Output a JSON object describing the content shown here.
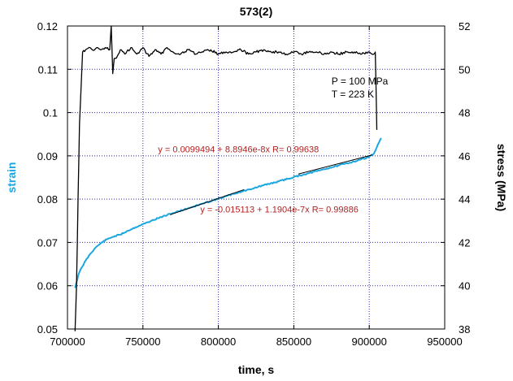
{
  "chart_data": {
    "type": "line",
    "title": "573(2)",
    "xlabel": "time, s",
    "ylabel_left": "strain",
    "ylabel_right": "stress (MPa)",
    "xlim": [
      700000,
      950000
    ],
    "ylim_left": [
      0.05,
      0.12
    ],
    "ylim_right": [
      38,
      52
    ],
    "xticks": [
      "700000",
      "750000",
      "800000",
      "850000",
      "900000",
      "950000"
    ],
    "yticks_left": [
      "0.05",
      "0.06",
      "0.07",
      "0.08",
      "0.09",
      "0.1",
      "0.11",
      "0.12"
    ],
    "yticks_right": [
      "38",
      "40",
      "42",
      "44",
      "46",
      "48",
      "50",
      "52"
    ],
    "grid": true,
    "series": [
      {
        "name": "strain",
        "axis": "left",
        "color": "#1aa7e0",
        "x": [
          705000,
          706000,
          707000,
          708000,
          710000,
          712000,
          715000,
          718000,
          722000,
          726000,
          730000,
          735000,
          740000,
          745000,
          750000,
          755000,
          760000,
          770000,
          780000,
          790000,
          800000,
          810000,
          820000,
          830000,
          840000,
          850000,
          860000,
          870000,
          880000,
          890000,
          900000,
          903000,
          905000,
          907000,
          908000
        ],
        "y": [
          0.0595,
          0.0608,
          0.0622,
          0.0632,
          0.0645,
          0.0658,
          0.0673,
          0.0686,
          0.0698,
          0.0707,
          0.0713,
          0.0718,
          0.0727,
          0.0735,
          0.0742,
          0.0749,
          0.0756,
          0.0768,
          0.0779,
          0.079,
          0.0801,
          0.0812,
          0.0822,
          0.0832,
          0.0841,
          0.0851,
          0.086,
          0.0869,
          0.0878,
          0.0887,
          0.0898,
          0.0905,
          0.092,
          0.0935,
          0.0941
        ]
      },
      {
        "name": "stress",
        "axis": "right",
        "color": "#000000",
        "x": [
          705000,
          706000,
          707000,
          708000,
          710000,
          712000,
          715000,
          718000,
          720000,
          722000,
          725000,
          728000,
          729000,
          730000,
          731000,
          733000,
          735000,
          738000,
          742000,
          746000,
          750000,
          754000,
          758000,
          762000,
          766000,
          770000,
          775000,
          780000,
          785000,
          790000,
          795000,
          800000,
          805000,
          810000,
          815000,
          820000,
          825000,
          830000,
          835000,
          840000,
          845000,
          850000,
          855000,
          860000,
          865000,
          870000,
          875000,
          880000,
          885000,
          890000,
          895000,
          900000,
          903000,
          904000,
          905000
        ],
        "y": [
          37.9,
          40.0,
          44.0,
          47.5,
          50.8,
          50.9,
          51.0,
          50.9,
          51.0,
          50.9,
          51.0,
          50.9,
          52.0,
          49.8,
          50.5,
          50.6,
          50.9,
          50.7,
          51.0,
          50.7,
          51.0,
          50.6,
          50.9,
          50.7,
          51.0,
          50.8,
          50.7,
          50.9,
          50.7,
          50.8,
          50.9,
          50.7,
          50.8,
          50.8,
          50.9,
          50.7,
          50.8,
          50.9,
          50.8,
          50.8,
          50.7,
          50.8,
          50.7,
          50.8,
          50.8,
          50.7,
          50.8,
          50.7,
          50.8,
          50.8,
          50.7,
          50.8,
          50.7,
          50.8,
          47.2
        ]
      }
    ],
    "fit_lines": [
      {
        "label": "y = 0.0099494 + 8.8946e-8x   R= 0.99638",
        "x": [
          853000,
          902000
        ],
        "y": [
          0.0858,
          0.0902
        ],
        "label_x": 760000,
        "label_y": 0.0908
      },
      {
        "label": "y = -0.015113 + 1.1904e-7x   R= 0.99886",
        "x": [
          768000,
          817000
        ],
        "y": [
          0.0764,
          0.0822
        ],
        "label_x": 788000,
        "label_y": 0.0769
      }
    ],
    "annotations": [
      {
        "text": "P = 100 MPa",
        "x": 875000,
        "y": 0.1065
      },
      {
        "text": "T = 223 K",
        "x": 875000,
        "y": 0.1035
      }
    ],
    "fit_text_color": "#b22222"
  }
}
